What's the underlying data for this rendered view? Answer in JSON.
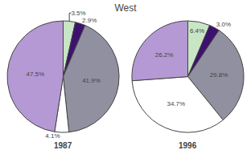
{
  "chart_data": {
    "type": "pie",
    "title": "West",
    "series": [
      {
        "name": "1987",
        "values": [
          3.5,
          2.9,
          41.9,
          4.1,
          47.5
        ],
        "value_labels": [
          "3.5%",
          "2.9%",
          "41.9%",
          "4.1%",
          "47.5%"
        ]
      },
      {
        "name": "1996",
        "values": [
          6.4,
          3.0,
          29.8,
          34.7,
          26.2
        ],
        "value_labels": [
          "6.4%",
          "3.0%",
          "29.8%",
          "34.7%",
          "26.2%"
        ]
      }
    ],
    "colors": [
      "#c8e6c5",
      "#3d1170",
      "#9090a0",
      "#ffffff",
      "#b599d4"
    ],
    "legend": false
  }
}
